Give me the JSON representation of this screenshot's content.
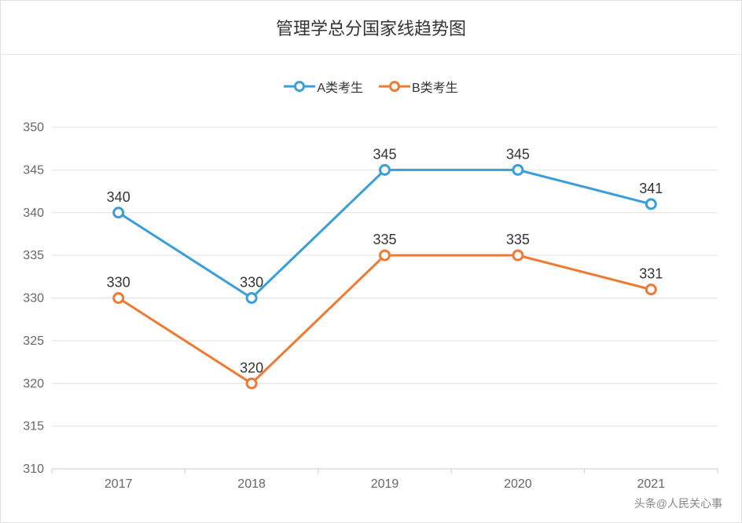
{
  "chart": {
    "type": "line",
    "title": "管理学总分国家线趋势图",
    "title_fontsize": 22,
    "title_color": "#333333",
    "background_color": "#ffffff",
    "border_color": "#e0e0e0",
    "grid_color": "#e0e0e0",
    "axis_color": "#cccccc",
    "label_color": "#666666",
    "data_label_color": "#333333",
    "data_label_fontsize": 18,
    "axis_label_fontsize": 16,
    "line_width": 3,
    "marker_size": 6,
    "marker_fill": "#ffffff",
    "legend": {
      "position": "top",
      "items": [
        {
          "label": "A类考生",
          "color": "#3a9ed8"
        },
        {
          "label": "B类考生",
          "color": "#ee7b34"
        }
      ]
    },
    "x": {
      "categories": [
        "2017",
        "2018",
        "2019",
        "2020",
        "2021"
      ]
    },
    "y": {
      "min": 310,
      "max": 350,
      "step": 5,
      "ticks": [
        310,
        315,
        320,
        325,
        330,
        335,
        340,
        345,
        350
      ]
    },
    "series": [
      {
        "name": "A类考生",
        "color": "#3a9ed8",
        "values": [
          340,
          330,
          345,
          345,
          341
        ]
      },
      {
        "name": "B类考生",
        "color": "#ee7b34",
        "values": [
          330,
          320,
          335,
          335,
          331
        ]
      }
    ]
  },
  "watermark": "头条@人民关心事"
}
